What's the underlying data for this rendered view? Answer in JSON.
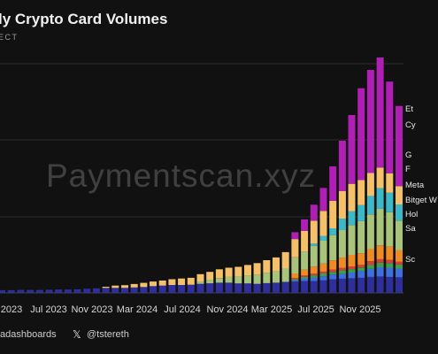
{
  "header": {
    "title": "ly Crypto Card Volumes",
    "subtitle": "ECT"
  },
  "watermark": "Paymentscan.xyz",
  "footer": {
    "source": "adashboards",
    "x_icon": "x-logo-icon",
    "handle": "@tstereth"
  },
  "legend_items": [
    "Et",
    "Cy",
    "G",
    "F",
    "Meta",
    "Bitget W",
    "Hol",
    "Sa",
    "Sc"
  ],
  "chart_data": {
    "type": "bar",
    "stacked": true,
    "x_tick_labels": [
      "2023",
      "Jul 2023",
      "Nov 2023",
      "Mar 2024",
      "Jul 2024",
      "Nov 2024",
      "Mar 2025",
      "Jul 2025",
      "Nov 2025"
    ],
    "grid": true,
    "legend_placement": "right",
    "ylim": [
      0,
      1
    ],
    "colors": {
      "navy": "#2e2e9c",
      "blue": "#3f6ee0",
      "green": "#3aa14b",
      "red": "#d93c3c",
      "orange": "#f08a24",
      "sage": "#a8c47c",
      "teal": "#3db8c8",
      "gold": "#f4c06a",
      "purple": "#b01fb3"
    },
    "series": [
      {
        "color": "#2e2e9c",
        "values": [
          0.012,
          0.012,
          0.013,
          0.013,
          0.013,
          0.014,
          0.015,
          0.015,
          0.016,
          0.018,
          0.02,
          0.022,
          0.022,
          0.022,
          0.024,
          0.026,
          0.03,
          0.032,
          0.035,
          0.035,
          0.036,
          0.04,
          0.042,
          0.045,
          0.045,
          0.042,
          0.042,
          0.04,
          0.043,
          0.045,
          0.048,
          0.05,
          0.052,
          0.052,
          0.055,
          0.06,
          0.062,
          0.064,
          0.066,
          0.07,
          0.072,
          0.07,
          0.068
        ]
      },
      {
        "color": "#3f6ee0",
        "values": [
          0,
          0,
          0,
          0,
          0,
          0,
          0,
          0,
          0,
          0,
          0,
          0,
          0,
          0,
          0,
          0,
          0,
          0,
          0,
          0,
          0,
          0,
          0,
          0,
          0,
          0,
          0,
          0,
          0,
          0,
          0,
          0.005,
          0.01,
          0.015,
          0.018,
          0.02,
          0.022,
          0.025,
          0.03,
          0.035,
          0.04,
          0.04,
          0.038
        ]
      },
      {
        "color": "#3aa14b",
        "values": [
          0,
          0,
          0,
          0,
          0,
          0,
          0,
          0,
          0,
          0,
          0,
          0,
          0,
          0,
          0,
          0,
          0,
          0,
          0,
          0,
          0,
          0,
          0,
          0,
          0,
          0,
          0,
          0,
          0,
          0,
          0,
          0.005,
          0.008,
          0.01,
          0.012,
          0.012,
          0.015,
          0.015,
          0.015,
          0.018,
          0.02,
          0.02,
          0.018
        ]
      },
      {
        "color": "#d93c3c",
        "values": [
          0,
          0,
          0,
          0,
          0,
          0,
          0,
          0,
          0,
          0,
          0,
          0,
          0,
          0,
          0,
          0,
          0,
          0,
          0,
          0,
          0,
          0,
          0,
          0,
          0,
          0,
          0,
          0,
          0,
          0,
          0,
          0.005,
          0.006,
          0.008,
          0.008,
          0.01,
          0.01,
          0.012,
          0.012,
          0.015,
          0.015,
          0.014,
          0.012
        ]
      },
      {
        "color": "#f08a24",
        "values": [
          0,
          0,
          0,
          0,
          0,
          0,
          0,
          0,
          0,
          0,
          0,
          0,
          0,
          0,
          0,
          0,
          0,
          0,
          0,
          0,
          0,
          0,
          0,
          0,
          0,
          0,
          0,
          0,
          0,
          0,
          0,
          0.02,
          0.025,
          0.03,
          0.035,
          0.04,
          0.045,
          0.05,
          0.05,
          0.055,
          0.06,
          0.058,
          0.05
        ]
      },
      {
        "color": "#a8c47c",
        "values": [
          0,
          0,
          0,
          0,
          0,
          0,
          0,
          0,
          0,
          0,
          0,
          0,
          0,
          0,
          0,
          0,
          0,
          0,
          0,
          0,
          0,
          0.01,
          0.015,
          0.02,
          0.025,
          0.03,
          0.035,
          0.04,
          0.045,
          0.05,
          0.06,
          0.07,
          0.08,
          0.09,
          0.1,
          0.11,
          0.12,
          0.13,
          0.14,
          0.15,
          0.16,
          0.15,
          0.13
        ]
      },
      {
        "color": "#3db8c8",
        "values": [
          0,
          0,
          0,
          0,
          0,
          0,
          0,
          0,
          0,
          0,
          0,
          0,
          0,
          0,
          0,
          0,
          0,
          0,
          0,
          0,
          0,
          0,
          0,
          0,
          0,
          0,
          0,
          0,
          0,
          0,
          0,
          0,
          0,
          0.01,
          0.02,
          0.03,
          0.05,
          0.06,
          0.07,
          0.08,
          0.09,
          0.085,
          0.07
        ]
      },
      {
        "color": "#f4c06a",
        "values": [
          0,
          0,
          0,
          0,
          0,
          0,
          0,
          0,
          0,
          0,
          0,
          0.005,
          0.01,
          0.012,
          0.015,
          0.018,
          0.02,
          0.022,
          0.025,
          0.028,
          0.03,
          0.032,
          0.035,
          0.038,
          0.04,
          0.042,
          0.045,
          0.05,
          0.055,
          0.06,
          0.07,
          0.08,
          0.09,
          0.1,
          0.11,
          0.12,
          0.12,
          0.12,
          0.11,
          0.1,
          0.09,
          0.085,
          0.08
        ]
      },
      {
        "color": "#b01fb3",
        "values": [
          0,
          0,
          0,
          0,
          0,
          0,
          0,
          0,
          0,
          0,
          0,
          0,
          0,
          0,
          0,
          0,
          0,
          0,
          0,
          0,
          0,
          0,
          0,
          0,
          0,
          0,
          0,
          0,
          0,
          0,
          0,
          0.03,
          0.05,
          0.07,
          0.1,
          0.15,
          0.22,
          0.3,
          0.4,
          0.45,
          0.48,
          0.4,
          0.35
        ]
      }
    ]
  }
}
